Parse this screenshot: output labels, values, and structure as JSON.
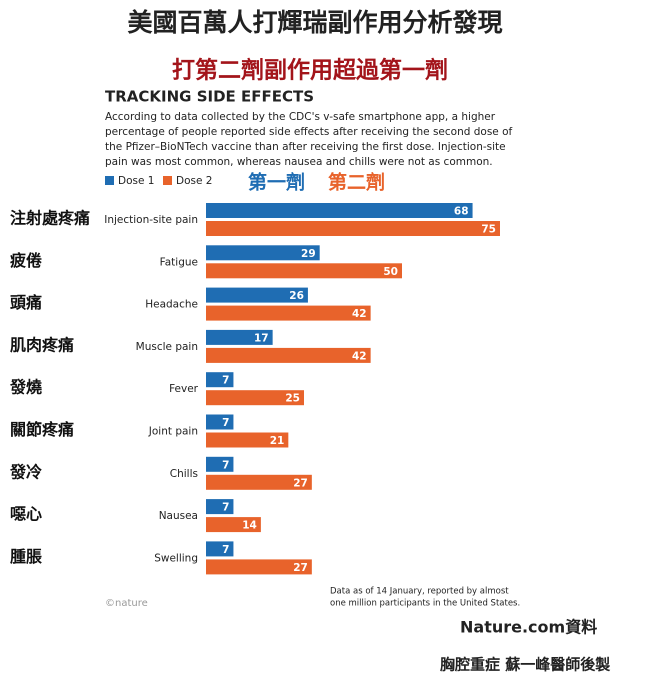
{
  "header": {
    "title": "美國百萬人打輝瑞副作用分析發現",
    "subtitle": "打第二劑副作用超過第一劑"
  },
  "chart_data": {
    "type": "bar",
    "orientation": "horizontal",
    "title": "TRACKING SIDE EFFECTS",
    "description": [
      "According to data collected by the CDC's v-safe smartphone app, a higher",
      "percentage of people reported side effects after receiving the second dose of",
      "the Pfizer–BioNTech vaccine than after receiving the first dose. Injection-site",
      "pain was most common, whereas nausea and chills were not as common."
    ],
    "categories": [
      "Injection-site pain",
      "Fatigue",
      "Headache",
      "Muscle pain",
      "Fever",
      "Joint pain",
      "Chills",
      "Nausea",
      "Swelling"
    ],
    "categories_zh": [
      "注射處疼痛",
      "疲倦",
      "頭痛",
      "肌肉疼痛",
      "發燒",
      "關節疼痛",
      "發冷",
      "噁心",
      "腫脹"
    ],
    "series": [
      {
        "name": "Dose 1",
        "name_zh": "第一劑",
        "color": "#1f6db3",
        "values": [
          68,
          29,
          26,
          17,
          7,
          7,
          7,
          7,
          7
        ]
      },
      {
        "name": "Dose 2",
        "name_zh": "第二劑",
        "color": "#e8632b",
        "values": [
          75,
          50,
          42,
          42,
          25,
          21,
          27,
          14,
          27
        ]
      }
    ],
    "xlim": [
      0,
      75
    ],
    "note": [
      "Data as of 14 January, reported by almost",
      "one million participants in the United States."
    ],
    "credit": "©nature"
  },
  "footer": {
    "source": "Nature.com資料",
    "author": "胸腔重症  蘇一峰醫師後製"
  }
}
